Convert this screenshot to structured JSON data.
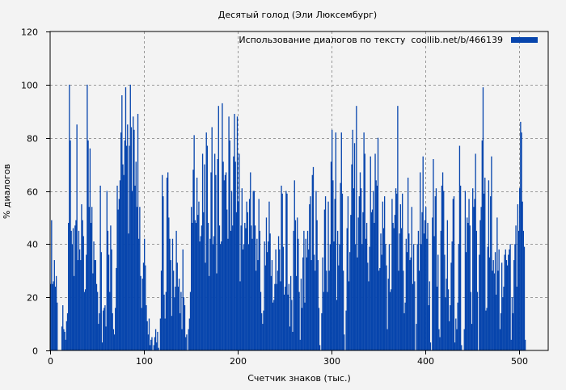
{
  "chart_data": {
    "type": "bar",
    "title": "Десятый голод (Эли Люксембург)",
    "xlabel": "Счетчик знаков (тыс.)",
    "ylabel": "% диалогов",
    "xlim": [
      0,
      531
    ],
    "ylim": [
      0,
      120
    ],
    "xticks": [
      0,
      100,
      200,
      300,
      400,
      500
    ],
    "yticks": [
      0,
      20,
      40,
      60,
      80,
      100,
      120
    ],
    "grid": true,
    "legend_position": "top-right",
    "color": "#0745ad",
    "series": [
      {
        "name": "Использование диалогов по тексту  coollib.net/b/466139",
        "x_start": 0,
        "x_step": 1,
        "values": [
          25,
          49,
          25,
          26,
          34,
          24,
          28,
          18,
          0,
          0,
          0,
          0,
          9,
          17,
          8,
          7,
          4,
          11,
          14,
          48,
          100,
          79,
          45,
          40,
          46,
          28,
          47,
          49,
          85,
          34,
          45,
          38,
          34,
          55,
          49,
          43,
          22,
          23,
          36,
          100,
          79,
          54,
          76,
          48,
          54,
          29,
          41,
          34,
          34,
          25,
          22,
          10,
          14,
          62,
          37,
          3,
          15,
          16,
          17,
          9,
          60,
          45,
          36,
          22,
          47,
          38,
          14,
          8,
          6,
          16,
          31,
          62,
          53,
          57,
          64,
          82,
          96,
          70,
          66,
          79,
          99,
          77,
          85,
          44,
          77,
          100,
          84,
          60,
          88,
          83,
          62,
          71,
          54,
          89,
          42,
          54,
          28,
          16,
          27,
          33,
          42,
          32,
          17,
          11,
          6,
          12,
          2,
          4,
          5,
          0,
          2,
          5,
          8,
          3,
          7,
          1,
          0,
          12,
          30,
          66,
          58,
          21,
          12,
          22,
          65,
          67,
          50,
          42,
          34,
          13,
          42,
          30,
          20,
          24,
          45,
          33,
          24,
          27,
          14,
          22,
          8,
          38,
          20,
          17,
          5,
          6,
          0,
          8,
          12,
          22,
          54,
          48,
          68,
          81,
          49,
          48,
          65,
          51,
          56,
          41,
          43,
          47,
          74,
          52,
          70,
          33,
          82,
          77,
          48,
          28,
          42,
          67,
          84,
          40,
          43,
          74,
          66,
          29,
          72,
          92,
          47,
          40,
          41,
          93,
          71,
          64,
          66,
          67,
          53,
          42,
          88,
          79,
          45,
          60,
          47,
          73,
          89,
          71,
          52,
          88,
          56,
          74,
          26,
          47,
          61,
          38,
          40,
          48,
          46,
          56,
          52,
          40,
          57,
          67,
          47,
          42,
          60,
          60,
          47,
          30,
          42,
          34,
          57,
          45,
          22,
          14,
          10,
          15,
          41,
          32,
          50,
          37,
          41,
          56,
          44,
          28,
          34,
          18,
          19,
          25,
          38,
          25,
          30,
          43,
          38,
          26,
          62,
          59,
          39,
          21,
          24,
          60,
          59,
          21,
          25,
          9,
          28,
          19,
          7,
          45,
          64,
          49,
          28,
          50,
          42,
          22,
          4,
          27,
          16,
          35,
          45,
          18,
          42,
          35,
          45,
          38,
          55,
          58,
          34,
          66,
          69,
          36,
          30,
          60,
          49,
          34,
          16,
          2,
          0,
          14,
          35,
          22,
          53,
          58,
          30,
          22,
          56,
          30,
          40,
          71,
          83,
          64,
          41,
          57,
          82,
          19,
          45,
          32,
          40,
          63,
          82,
          59,
          30,
          6,
          0,
          15,
          46,
          58,
          26,
          37,
          51,
          70,
          83,
          61,
          78,
          40,
          92,
          35,
          50,
          58,
          67,
          61,
          40,
          52,
          82,
          74,
          42,
          48,
          33,
          26,
          39,
          73,
          52,
          53,
          60,
          48,
          74,
          64,
          62,
          80,
          30,
          31,
          44,
          36,
          56,
          46,
          58,
          40,
          32,
          8,
          27,
          40,
          22,
          23,
          57,
          48,
          46,
          51,
          61,
          59,
          92,
          30,
          44,
          55,
          46,
          59,
          30,
          14,
          18,
          42,
          37,
          65,
          44,
          34,
          35,
          54,
          25,
          40,
          26,
          0,
          10,
          40,
          45,
          30,
          67,
          40,
          52,
          73,
          44,
          49,
          54,
          42,
          48,
          17,
          26,
          3,
          0,
          50,
          72,
          43,
          58,
          61,
          24,
          36,
          8,
          5,
          45,
          62,
          67,
          60,
          36,
          20,
          27,
          49,
          23,
          11,
          17,
          33,
          41,
          57,
          58,
          3,
          12,
          8,
          18,
          40,
          77,
          62,
          2,
          0,
          0,
          8,
          60,
          37,
          50,
          48,
          57,
          47,
          22,
          10,
          61,
          54,
          57,
          74,
          45,
          22,
          0,
          36,
          49,
          54,
          79,
          99,
          59,
          65,
          15,
          16,
          39,
          64,
          35,
          58,
          73,
          30,
          34,
          29,
          37,
          21,
          50,
          30,
          38,
          8,
          14,
          33,
          20,
          24,
          36,
          38,
          34,
          32,
          36,
          38,
          40,
          4,
          20,
          14,
          34,
          40,
          47,
          24,
          55,
          45,
          61,
          86,
          82,
          56,
          45,
          39,
          4
        ]
      }
    ]
  }
}
